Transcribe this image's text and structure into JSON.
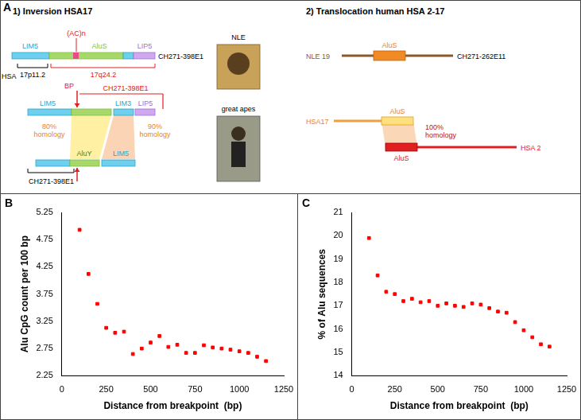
{
  "diagram": {
    "label": "A",
    "inversion": {
      "heading": "1) Inversion HSA17",
      "human": {
        "species": "HSA",
        "segments": [
          "LIM5",
          "(AC)n",
          "AluS",
          "LIP5"
        ],
        "clone": "CH271-398E1",
        "bands": [
          "17p11.2",
          "17q24.2"
        ]
      },
      "ape": {
        "breakpoint": "BP",
        "clone": "CH271-398E1",
        "upper_segments": [
          "LIM5",
          "LIM3",
          "LIP5"
        ],
        "homologies": [
          "80% homology",
          "90% homology"
        ],
        "lower_segments": [
          "AluY",
          "LIM5"
        ],
        "lower_clone": "CH271-398E1"
      }
    },
    "species": [
      "NLE",
      "great apes"
    ],
    "translocation": {
      "heading": "2) Translocation human HSA 2-17",
      "nle": {
        "chromosome": "NLE 19",
        "element": "AluS",
        "clone": "CH271-262E11"
      },
      "human": {
        "chromosome_a": "HSA17",
        "element_a": "AluS",
        "homology": "100% homology",
        "element_b": "AluS",
        "chromosome_b": "HSA 2"
      }
    }
  },
  "chart_data": [
    {
      "label": "B",
      "type": "scatter",
      "marker": "square",
      "color": "#ff0000",
      "grid": false,
      "x_label": "Distance from breakpoint  (bp)",
      "y_label": "Alu CpG count per 100 bp",
      "x": [
        100,
        150,
        200,
        250,
        300,
        350,
        400,
        450,
        500,
        550,
        600,
        650,
        700,
        750,
        800,
        850,
        900,
        950,
        1000,
        1050,
        1100,
        1150
      ],
      "values": [
        4.93,
        4.12,
        3.57,
        3.13,
        3.04,
        3.06,
        2.65,
        2.75,
        2.86,
        2.98,
        2.78,
        2.82,
        2.67,
        2.67,
        2.81,
        2.77,
        2.75,
        2.73,
        2.7,
        2.67,
        2.6,
        2.52
      ],
      "xlim": [
        0,
        1250
      ],
      "xticks": [
        0,
        250,
        500,
        750,
        1000,
        1250
      ],
      "ylim": [
        2.25,
        5.25
      ],
      "yticks": [
        2.25,
        2.75,
        3.25,
        3.75,
        4.25,
        4.75,
        5.25
      ]
    },
    {
      "label": "C",
      "type": "scatter",
      "marker": "square",
      "color": "#ff0000",
      "grid": false,
      "x_label": "Distance from breakpoint  (bp)",
      "y_label": "% of Alu sequences",
      "x": [
        100,
        150,
        200,
        250,
        300,
        350,
        400,
        450,
        500,
        550,
        600,
        650,
        700,
        750,
        800,
        850,
        900,
        950,
        1000,
        1050,
        1100,
        1150
      ],
      "values": [
        19.9,
        18.3,
        17.6,
        17.5,
        17.2,
        17.3,
        17.15,
        17.2,
        17.0,
        17.1,
        17.0,
        16.95,
        17.1,
        17.05,
        16.9,
        16.75,
        16.7,
        16.3,
        15.95,
        15.65,
        15.35,
        15.25
      ],
      "xlim": [
        0,
        1250
      ],
      "xticks": [
        0,
        250,
        500,
        750,
        1000,
        1250
      ],
      "ylim": [
        14,
        21
      ],
      "yticks": [
        14,
        15,
        16,
        17,
        18,
        19,
        20,
        21
      ]
    }
  ]
}
